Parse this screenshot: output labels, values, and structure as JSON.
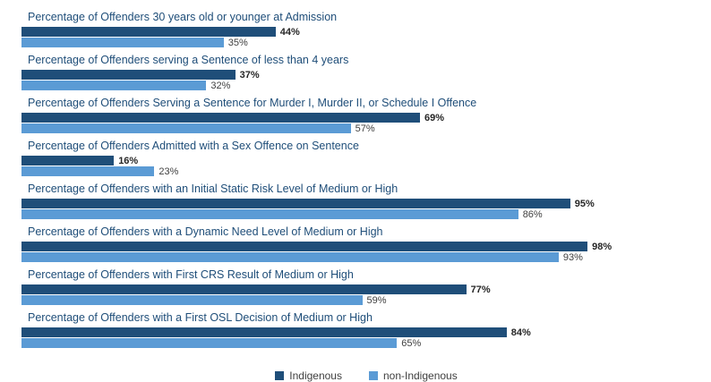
{
  "chart_data": {
    "type": "bar",
    "orientation": "horizontal",
    "categories": [
      "Percentage of Offenders 30 years old or younger at Admission",
      "Percentage of Offenders serving a Sentence of less than 4 years",
      "Percentage of Offenders Serving a Sentence for Murder I, Murder II, or Schedule I Offence",
      "Percentage of Offenders Admitted with a Sex Offence on Sentence",
      "Percentage of Offenders with an Initial Static Risk Level of Medium or High",
      "Percentage of Offenders with a Dynamic Need Level of Medium or High",
      "Percentage of Offenders with First CRS Result of Medium or High",
      "Percentage of Offenders with a First OSL Decision of Medium or High"
    ],
    "series": [
      {
        "name": "Indigenous",
        "color": "#1f4e79",
        "values": [
          44,
          37,
          69,
          16,
          95,
          98,
          77,
          84
        ]
      },
      {
        "name": "non-Indigenous",
        "color": "#5b9bd5",
        "values": [
          35,
          32,
          57,
          23,
          86,
          93,
          59,
          65
        ]
      }
    ],
    "value_suffix": "%",
    "xlim": [
      0,
      100
    ],
    "grid": false,
    "legend_position": "bottom",
    "title": "",
    "xlabel": "",
    "ylabel": ""
  }
}
